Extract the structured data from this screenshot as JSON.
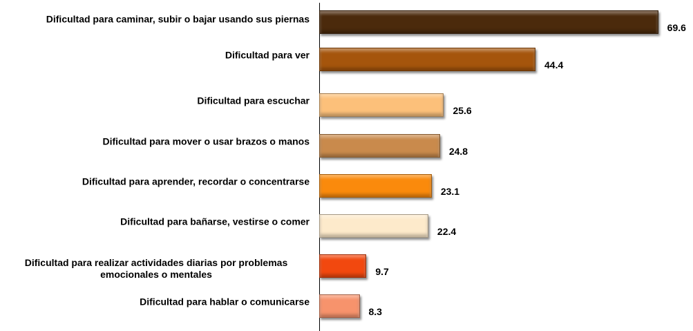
{
  "chart_data": {
    "type": "hbar",
    "categories": [
      "Dificultad para caminar, subir o bajar usando sus piernas",
      "Dificultad para ver",
      "Dificultad para escuchar",
      "Dificultad para mover o usar brazos o manos",
      "Dificultad para aprender, recordar o concentrarse",
      "Dificultad para bañarse, vestirse o comer",
      "Dificultad para realizar actividades diarias por problemas emocionales o mentales",
      "Dificultad para hablar o comunicarse"
    ],
    "values": [
      69.6,
      44.4,
      25.6,
      24.8,
      23.1,
      22.4,
      9.7,
      8.3
    ],
    "colors": [
      "#4b2a0c",
      "#a5550c",
      "#fcc07a",
      "#c98a4c",
      "#fa8a0c",
      "#fdeacb",
      "#f2480f",
      "#f7936c"
    ],
    "xlim": [
      0,
      70
    ]
  }
}
